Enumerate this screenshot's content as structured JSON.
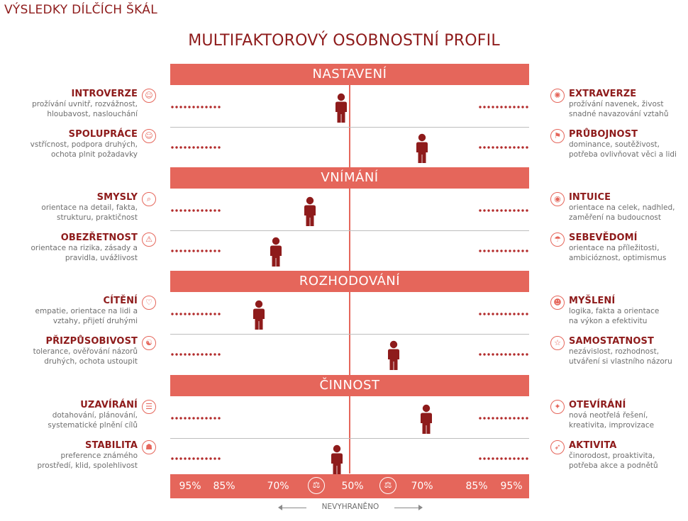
{
  "header": {
    "page_title": "VÝSLEDKY DÍLČÍCH ŠKÁL",
    "main_title": "MULTIFAKTOROVÝ OSOBNOSTNÍ PROFIL"
  },
  "colors": {
    "accent": "#e5665b",
    "marker": "#8e1b1b",
    "description": "#6e6e6e"
  },
  "chart_data": {
    "type": "scatter",
    "title": "MULTIFAKTOROVÝ OSOBNOSTNÍ PROFIL",
    "x_ticks": [
      "95%",
      "85%",
      "70%",
      "50%",
      "70%",
      "85%",
      "95%"
    ],
    "x_center_label": "NEVYHRANĚNO",
    "scale_note": "signed position from -100 (fully left trait) to 100 (fully right trait), 0 = centre",
    "sections": [
      {
        "name": "NASTAVENÍ",
        "rows": [
          {
            "left_icon": "introvert-icon",
            "right_icon": "extravert-icon",
            "left": {
              "name": "INTROVERZE",
              "desc": [
                "prožívání uvnitř, rozvážnost,",
                "hloubavost, naslouchání"
              ]
            },
            "right": {
              "name": "EXTRAVERZE",
              "desc": [
                "prožívání navenek, živost",
                "snadné navazování vztahů"
              ]
            },
            "value": -6
          },
          {
            "left_icon": "cooperation-icon",
            "right_icon": "assertiveness-icon",
            "left": {
              "name": "SPOLUPRÁCE",
              "desc": [
                "vstřícnost, podpora druhých,",
                "ochota plnit požadavky"
              ]
            },
            "right": {
              "name": "PRŮBOJNOST",
              "desc": [
                "dominance, soutěživost,",
                "potřeba ovlivňovat věci a lidi"
              ]
            },
            "value": 51
          }
        ]
      },
      {
        "name": "VNÍMÁNÍ",
        "rows": [
          {
            "left_icon": "magnifier-icon",
            "right_icon": "intuition-icon",
            "left": {
              "name": "SMYSLY",
              "desc": [
                "orientace na detail, fakta,",
                "strukturu, praktičnost"
              ]
            },
            "right": {
              "name": "INTUICE",
              "desc": [
                "orientace na celek, nadhled,",
                "zaměření na budoucnost"
              ]
            },
            "value": -28
          },
          {
            "left_icon": "warning-icon",
            "right_icon": "self-confidence-icon",
            "left": {
              "name": "OBEZŘETNOST",
              "desc": [
                "orientace na rizika, zásady a",
                "pravidla, uvážlivost"
              ]
            },
            "right": {
              "name": "SEBEVĚDOMÍ",
              "desc": [
                "orientace na příležitosti,",
                "ambicióznost, optimismus"
              ]
            },
            "value": -52
          }
        ]
      },
      {
        "name": "ROZHODOVÁNÍ",
        "rows": [
          {
            "left_icon": "heart-icon",
            "right_icon": "head-thinking-icon",
            "left": {
              "name": "CÍTĚNÍ",
              "desc": [
                "empatie, orientace na lidi a",
                "vztahy, přijetí druhými"
              ]
            },
            "right": {
              "name": "MYŠLENÍ",
              "desc": [
                "logika, fakta a orientace",
                "na výkon a efektivitu"
              ]
            },
            "value": -64
          },
          {
            "left_icon": "adaptability-icon",
            "right_icon": "independence-icon",
            "left": {
              "name": "PŘIZPŮSOBIVOST",
              "desc": [
                "tolerance, ověřování názorů",
                "druhých, ochota ustoupit"
              ]
            },
            "right": {
              "name": "SAMOSTATNOST",
              "desc": [
                "nezávislost, rozhodnost,",
                "utváření si vlastního názoru"
              ]
            },
            "value": 31
          }
        ]
      },
      {
        "name": "ČINNOST",
        "rows": [
          {
            "left_icon": "checklist-icon",
            "right_icon": "lightbulb-icon",
            "left": {
              "name": "UZAVÍRÁNÍ",
              "desc": [
                "dotahování, plánování,",
                "systematické plnění cílů"
              ]
            },
            "right": {
              "name": "OTEVÍRÁNÍ",
              "desc": [
                "nová neotřelá řešení,",
                "kreativita, improvizace"
              ]
            },
            "value": 54
          },
          {
            "left_icon": "stability-icon",
            "right_icon": "runner-icon",
            "left": {
              "name": "STABILITA",
              "desc": [
                "preference známého",
                "prostředí, klid, spolehlivost"
              ]
            },
            "right": {
              "name": "AKTIVITA",
              "desc": [
                "činorodost, proaktivita,",
                "potřeba akce a podnětů"
              ]
            },
            "value": -9
          }
        ]
      }
    ]
  }
}
